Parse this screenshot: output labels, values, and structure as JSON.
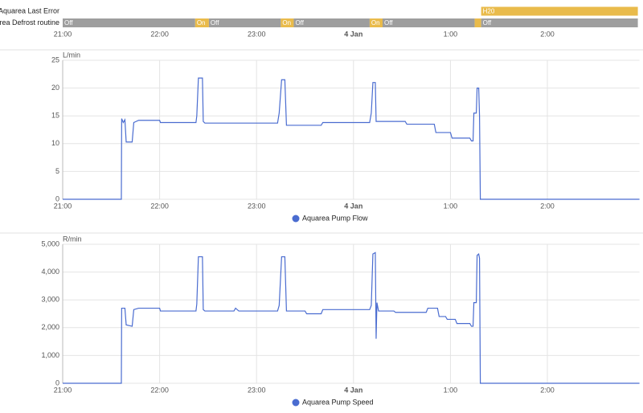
{
  "chart_data": [
    {
      "type": "timeline",
      "rows": [
        {
          "name": "Aquarea Last Error",
          "segments": [
            {
              "label": "H20",
              "start": 259,
              "end": 356,
              "color": "#e9bb4b"
            }
          ]
        },
        {
          "name": "Aquarea Defrost routine",
          "segments": [
            {
              "label": "Off",
              "start": 0,
              "end": 82,
              "color": "#9e9e9e"
            },
            {
              "label": "On",
              "start": 82,
              "end": 90.5,
              "color": "#e9bb4b"
            },
            {
              "label": "Off",
              "start": 90.5,
              "end": 135,
              "color": "#9e9e9e"
            },
            {
              "label": "On",
              "start": 135,
              "end": 143,
              "color": "#e9bb4b"
            },
            {
              "label": "Off",
              "start": 143,
              "end": 190,
              "color": "#9e9e9e"
            },
            {
              "label": "On",
              "start": 190,
              "end": 198,
              "color": "#e9bb4b"
            },
            {
              "label": "Off",
              "start": 198,
              "end": 255,
              "color": "#9e9e9e"
            },
            {
              "label": null,
              "start": 255,
              "end": 259,
              "color": "#e9bb4b"
            },
            {
              "label": "Off",
              "start": 259,
              "end": 356,
              "color": "#9e9e9e"
            }
          ]
        }
      ],
      "xlim": [
        0,
        357
      ],
      "xticks": [
        {
          "value": 0,
          "label": "21:00"
        },
        {
          "value": 60,
          "label": "22:00"
        },
        {
          "value": 120,
          "label": "23:00"
        },
        {
          "value": 180,
          "label": "4 Jan",
          "bold": true
        },
        {
          "value": 240,
          "label": "1:00"
        },
        {
          "value": 300,
          "label": "2:00"
        }
      ]
    },
    {
      "type": "line",
      "y_unit": "L/min",
      "x": [
        0,
        36.3,
        36.5,
        37.5,
        38.5,
        39.3,
        43,
        44,
        47,
        60,
        60.5,
        82.5,
        83,
        84,
        86.5,
        87,
        88,
        133,
        134,
        135.5,
        137.5,
        138.5,
        160,
        161,
        190,
        191,
        192,
        193.5,
        194,
        212,
        213,
        230,
        231,
        240,
        241,
        252,
        253,
        254,
        254.5,
        256,
        256.5,
        257.5,
        258,
        258.5,
        357
      ],
      "series": [
        {
          "name": "Aquarea Pump Flow",
          "color": "#4a6cd0",
          "values": [
            0,
            0,
            14.5,
            13.8,
            14.3,
            10.3,
            10.3,
            13.8,
            14.2,
            14.2,
            13.8,
            13.8,
            15,
            21.8,
            21.8,
            14,
            13.7,
            13.7,
            15.5,
            21.5,
            21.5,
            13.3,
            13.3,
            13.8,
            13.8,
            15.5,
            21,
            21,
            14,
            14,
            13.5,
            13.5,
            12,
            12,
            11,
            11,
            10.5,
            10.5,
            15.5,
            15.5,
            20,
            20,
            15,
            0,
            0
          ]
        }
      ],
      "xlim": [
        0,
        357
      ],
      "ylim": [
        0,
        25
      ],
      "yticks": [
        0,
        5,
        10,
        15,
        20,
        25
      ],
      "grid": true,
      "xticks": [
        {
          "value": 0,
          "label": "21:00"
        },
        {
          "value": 60,
          "label": "22:00"
        },
        {
          "value": 120,
          "label": "23:00"
        },
        {
          "value": 180,
          "label": "4 Jan",
          "bold": true
        },
        {
          "value": 240,
          "label": "1:00"
        },
        {
          "value": 300,
          "label": "2:00"
        }
      ]
    },
    {
      "type": "line",
      "y_unit": "R/min",
      "x": [
        0,
        36.3,
        36.5,
        38.5,
        39.3,
        43,
        44,
        47,
        60,
        60.5,
        82.5,
        83,
        84,
        86.5,
        87,
        88,
        106,
        107,
        109,
        133,
        134,
        135.5,
        137.5,
        138.5,
        150,
        151,
        160,
        161,
        190,
        191,
        192,
        193.5,
        194,
        194.5,
        195.5,
        205,
        206,
        225,
        226,
        232,
        233,
        237,
        238,
        243,
        244,
        252,
        253,
        254,
        254.5,
        256,
        256.5,
        257.5,
        258,
        258.5,
        357
      ],
      "series": [
        {
          "name": "Aquarea Pump Speed",
          "color": "#4a6cd0",
          "values": [
            0,
            0,
            2700,
            2700,
            2100,
            2050,
            2650,
            2700,
            2700,
            2600,
            2600,
            2850,
            4550,
            4550,
            2650,
            2600,
            2600,
            2700,
            2600,
            2600,
            2800,
            4550,
            4550,
            2600,
            2600,
            2500,
            2500,
            2650,
            2650,
            2800,
            4650,
            4700,
            1600,
            2900,
            2600,
            2600,
            2550,
            2550,
            2700,
            2700,
            2400,
            2400,
            2300,
            2300,
            2150,
            2150,
            2050,
            2050,
            2900,
            2900,
            4600,
            4650,
            4500,
            0,
            0
          ]
        }
      ],
      "xlim": [
        0,
        357
      ],
      "ylim": [
        0,
        5000
      ],
      "yticks": [
        0,
        {
          "value": 1000,
          "label": "1,000"
        },
        {
          "value": 2000,
          "label": "2,000"
        },
        {
          "value": 3000,
          "label": "3,000"
        },
        {
          "value": 4000,
          "label": "4,000"
        },
        {
          "value": 5000,
          "label": "5,000"
        }
      ],
      "grid": true,
      "xticks": [
        {
          "value": 0,
          "label": "21:00"
        },
        {
          "value": 60,
          "label": "22:00"
        },
        {
          "value": 120,
          "label": "23:00"
        },
        {
          "value": 180,
          "label": "4 Jan",
          "bold": true
        },
        {
          "value": 240,
          "label": "1:00"
        },
        {
          "value": 300,
          "label": "2:00"
        }
      ]
    }
  ]
}
